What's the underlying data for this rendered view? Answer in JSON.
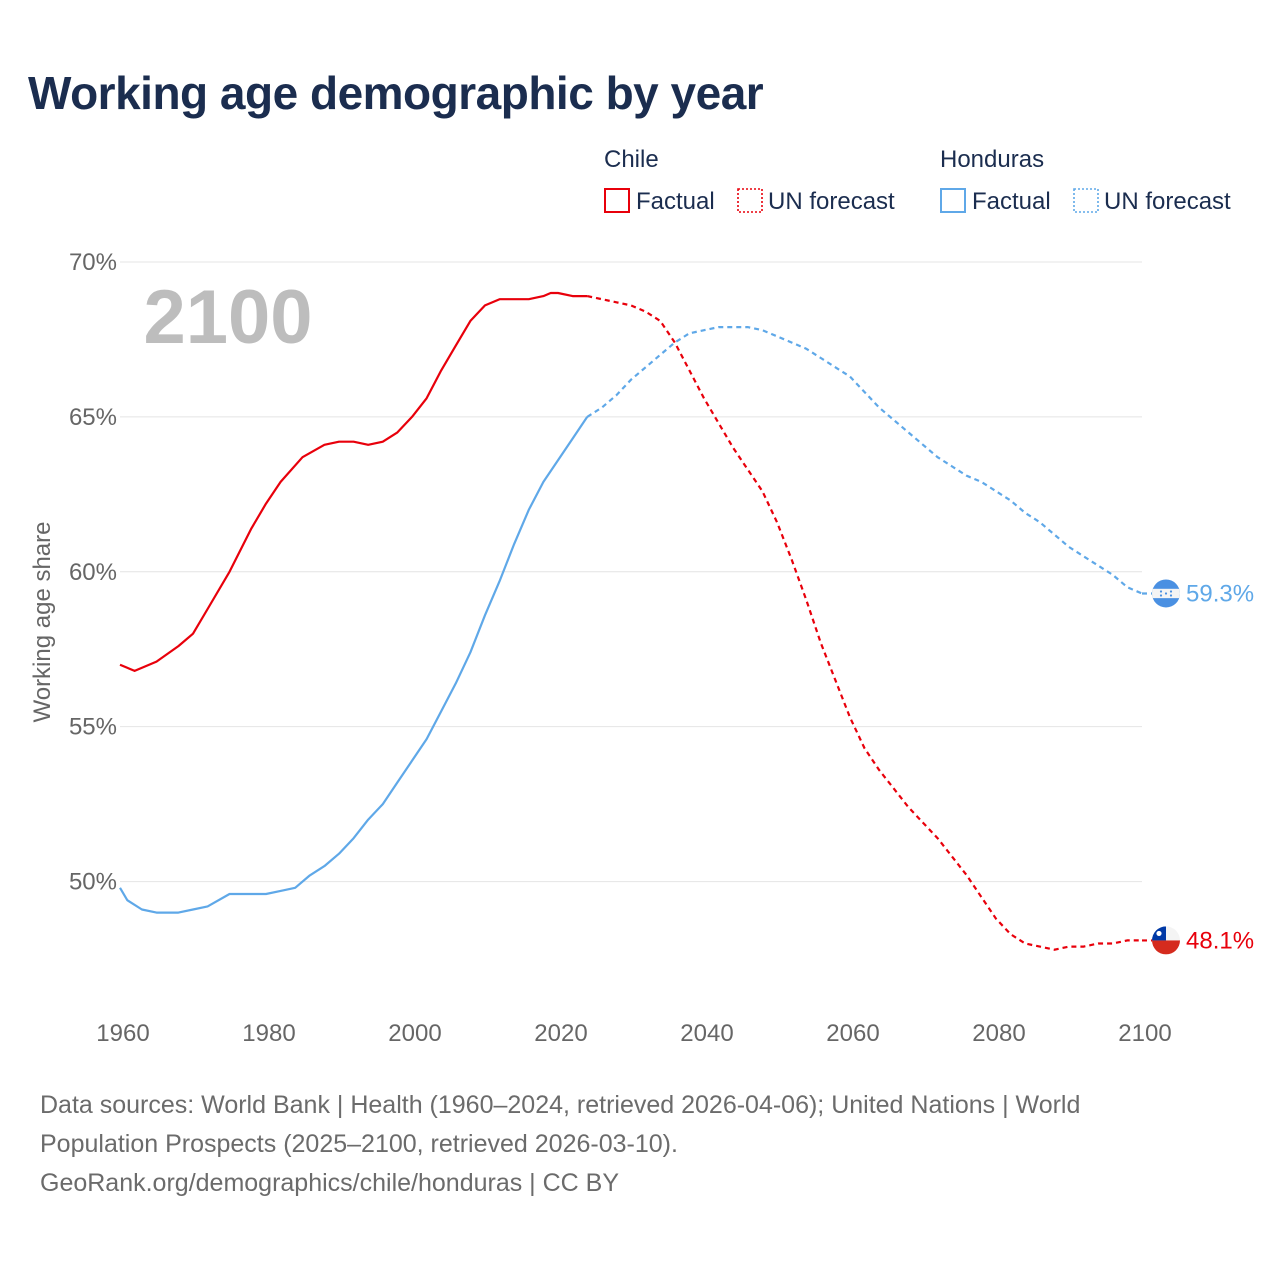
{
  "title": "Working age demographic by year",
  "year_watermark": "2100",
  "legend": {
    "groups": [
      {
        "name": "Chile",
        "color": "#e8000b",
        "factual": "Factual",
        "forecast": "UN forecast"
      },
      {
        "name": "Honduras",
        "color": "#5fa8e8",
        "factual": "Factual",
        "forecast": "UN forecast"
      }
    ]
  },
  "footer": {
    "sources": "Data sources: World Bank | Health (1960–2024, retrieved 2026-04-06); United Nations | World Population Prospects (2025–2100, retrieved 2026-03-10).",
    "credit": "GeoRank.org/demographics/chile/honduras | CC BY"
  },
  "chart_data": {
    "type": "line",
    "ylabel": "Working age share",
    "xlabel": "",
    "xlim": [
      1960,
      2100
    ],
    "ylim": [
      46.5,
      70
    ],
    "x_ticks": [
      1960,
      1980,
      2000,
      2020,
      2040,
      2060,
      2080,
      2100
    ],
    "x_tick_labels": [
      "1960",
      "1980",
      "2000",
      "2020",
      "2040",
      "2060",
      "2080",
      "2100"
    ],
    "y_ticks": [
      50,
      55,
      60,
      65,
      70
    ],
    "y_tick_labels": [
      "50%",
      "55%",
      "60%",
      "65%",
      "70%"
    ],
    "forecast_start": 2024,
    "series": [
      {
        "name": "Chile",
        "color": "#e8000b",
        "end_label": "48.1%",
        "points": [
          [
            1960,
            57.0
          ],
          [
            1962,
            56.8
          ],
          [
            1965,
            57.1
          ],
          [
            1968,
            57.6
          ],
          [
            1970,
            58.0
          ],
          [
            1972,
            58.8
          ],
          [
            1975,
            60.0
          ],
          [
            1978,
            61.4
          ],
          [
            1980,
            62.2
          ],
          [
            1982,
            62.9
          ],
          [
            1985,
            63.7
          ],
          [
            1988,
            64.1
          ],
          [
            1990,
            64.2
          ],
          [
            1992,
            64.2
          ],
          [
            1994,
            64.1
          ],
          [
            1996,
            64.2
          ],
          [
            1998,
            64.5
          ],
          [
            2000,
            65.0
          ],
          [
            2002,
            65.6
          ],
          [
            2004,
            66.5
          ],
          [
            2006,
            67.3
          ],
          [
            2008,
            68.1
          ],
          [
            2010,
            68.6
          ],
          [
            2012,
            68.8
          ],
          [
            2014,
            68.8
          ],
          [
            2016,
            68.8
          ],
          [
            2018,
            68.9
          ],
          [
            2019,
            69.0
          ],
          [
            2020,
            69.0
          ],
          [
            2022,
            68.9
          ],
          [
            2024,
            68.9
          ],
          [
            2026,
            68.8
          ],
          [
            2028,
            68.7
          ],
          [
            2030,
            68.6
          ],
          [
            2032,
            68.4
          ],
          [
            2034,
            68.1
          ],
          [
            2036,
            67.4
          ],
          [
            2038,
            66.5
          ],
          [
            2040,
            65.6
          ],
          [
            2042,
            64.8
          ],
          [
            2044,
            64.0
          ],
          [
            2046,
            63.3
          ],
          [
            2048,
            62.6
          ],
          [
            2050,
            61.6
          ],
          [
            2052,
            60.4
          ],
          [
            2054,
            59.1
          ],
          [
            2056,
            57.7
          ],
          [
            2058,
            56.5
          ],
          [
            2060,
            55.3
          ],
          [
            2062,
            54.3
          ],
          [
            2064,
            53.6
          ],
          [
            2066,
            53.0
          ],
          [
            2068,
            52.4
          ],
          [
            2070,
            51.9
          ],
          [
            2072,
            51.4
          ],
          [
            2074,
            50.8
          ],
          [
            2076,
            50.2
          ],
          [
            2078,
            49.5
          ],
          [
            2080,
            48.8
          ],
          [
            2082,
            48.3
          ],
          [
            2084,
            48.0
          ],
          [
            2086,
            47.9
          ],
          [
            2088,
            47.8
          ],
          [
            2090,
            47.9
          ],
          [
            2092,
            47.9
          ],
          [
            2094,
            48.0
          ],
          [
            2096,
            48.0
          ],
          [
            2098,
            48.1
          ],
          [
            2100,
            48.1
          ]
        ]
      },
      {
        "name": "Honduras",
        "color": "#5fa8e8",
        "end_label": "59.3%",
        "points": [
          [
            1960,
            49.8
          ],
          [
            1961,
            49.4
          ],
          [
            1963,
            49.1
          ],
          [
            1965,
            49.0
          ],
          [
            1968,
            49.0
          ],
          [
            1970,
            49.1
          ],
          [
            1972,
            49.2
          ],
          [
            1975,
            49.6
          ],
          [
            1978,
            49.6
          ],
          [
            1980,
            49.6
          ],
          [
            1982,
            49.7
          ],
          [
            1984,
            49.8
          ],
          [
            1986,
            50.2
          ],
          [
            1988,
            50.5
          ],
          [
            1990,
            50.9
          ],
          [
            1992,
            51.4
          ],
          [
            1994,
            52.0
          ],
          [
            1996,
            52.5
          ],
          [
            1998,
            53.2
          ],
          [
            2000,
            53.9
          ],
          [
            2002,
            54.6
          ],
          [
            2004,
            55.5
          ],
          [
            2006,
            56.4
          ],
          [
            2008,
            57.4
          ],
          [
            2010,
            58.6
          ],
          [
            2012,
            59.7
          ],
          [
            2014,
            60.9
          ],
          [
            2016,
            62.0
          ],
          [
            2018,
            62.9
          ],
          [
            2020,
            63.6
          ],
          [
            2022,
            64.3
          ],
          [
            2024,
            65.0
          ],
          [
            2026,
            65.3
          ],
          [
            2028,
            65.7
          ],
          [
            2030,
            66.2
          ],
          [
            2032,
            66.6
          ],
          [
            2034,
            67.0
          ],
          [
            2036,
            67.4
          ],
          [
            2038,
            67.7
          ],
          [
            2040,
            67.8
          ],
          [
            2042,
            67.9
          ],
          [
            2044,
            67.9
          ],
          [
            2046,
            67.9
          ],
          [
            2048,
            67.8
          ],
          [
            2050,
            67.6
          ],
          [
            2052,
            67.4
          ],
          [
            2054,
            67.2
          ],
          [
            2056,
            66.9
          ],
          [
            2058,
            66.6
          ],
          [
            2060,
            66.3
          ],
          [
            2062,
            65.8
          ],
          [
            2064,
            65.3
          ],
          [
            2066,
            64.9
          ],
          [
            2068,
            64.5
          ],
          [
            2070,
            64.1
          ],
          [
            2072,
            63.7
          ],
          [
            2074,
            63.4
          ],
          [
            2076,
            63.1
          ],
          [
            2078,
            62.9
          ],
          [
            2080,
            62.6
          ],
          [
            2082,
            62.3
          ],
          [
            2084,
            61.9
          ],
          [
            2086,
            61.6
          ],
          [
            2088,
            61.2
          ],
          [
            2090,
            60.8
          ],
          [
            2092,
            60.5
          ],
          [
            2094,
            60.2
          ],
          [
            2096,
            59.9
          ],
          [
            2098,
            59.5
          ],
          [
            2100,
            59.3
          ]
        ]
      }
    ]
  }
}
